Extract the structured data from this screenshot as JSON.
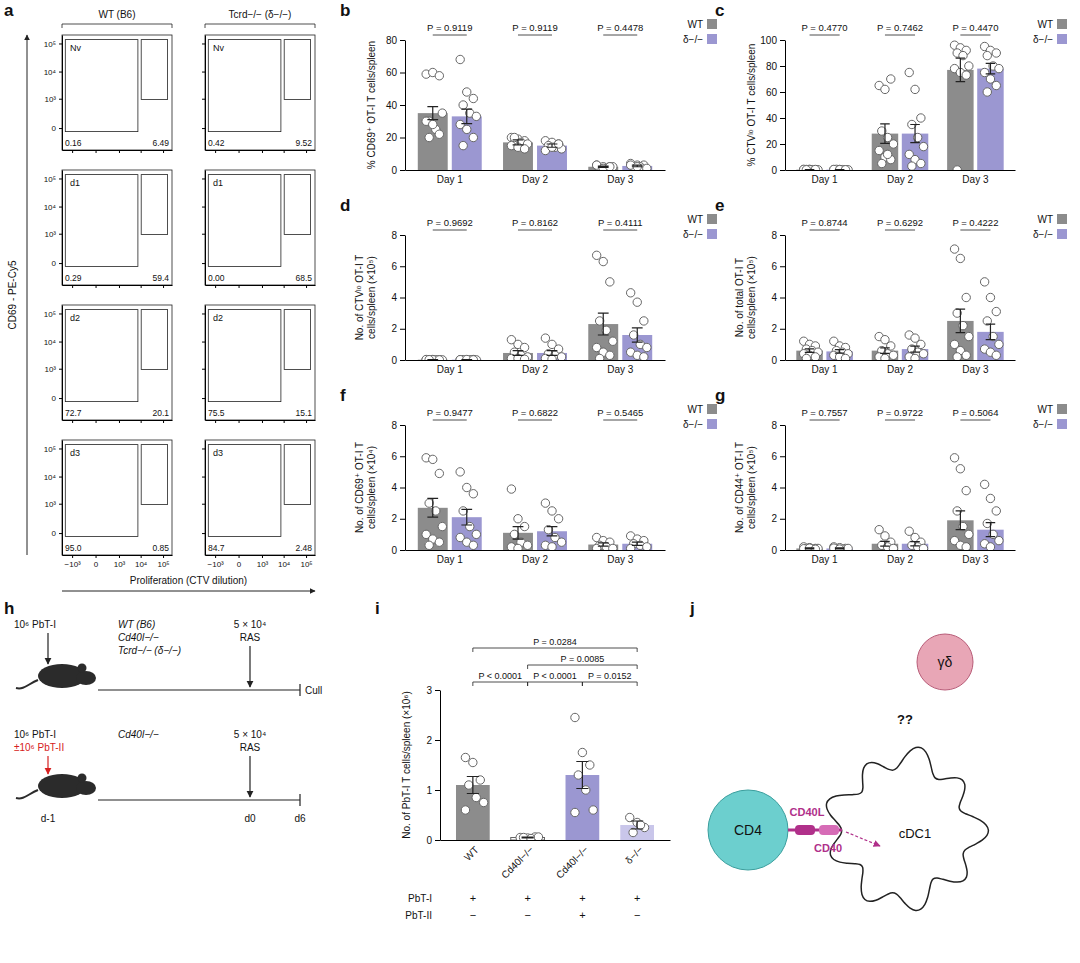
{
  "chart_data": [
    {
      "panel": "b",
      "type": "bar",
      "y_label": "% CD69⁺ OT-I T cells/spleen",
      "categories": [
        "Day 1",
        "Day 2",
        "Day 3"
      ],
      "ylim": [
        0,
        80
      ],
      "yticks": [
        0,
        20,
        40,
        60,
        80
      ],
      "p_values": [
        "P = 0.9119",
        "P = 0.9119",
        "P = 0.4478"
      ],
      "legend": "right",
      "series": [
        {
          "name": "WT",
          "color": "#8c8c8c",
          "values": [
            35,
            17,
            2
          ],
          "errors": [
            4,
            1.5,
            0.4
          ],
          "points": [
            [
              59,
              60,
              58,
              30,
              25,
              35,
              30,
              28,
              22,
              20
            ],
            [
              20,
              19,
              18,
              17,
              17,
              16,
              15,
              14,
              13,
              20
            ],
            [
              3,
              2,
              2,
              1,
              1,
              2,
              3,
              1,
              2
            ]
          ]
        },
        {
          "name": "δ−/−",
          "color": "#9b97d1",
          "values": [
            33,
            15,
            2.5
          ],
          "errors": [
            4.5,
            1,
            0.5
          ],
          "points": [
            [
              68,
              48,
              44,
              40,
              35,
              33,
              28,
              25,
              20,
              15
            ],
            [
              18,
              17,
              16,
              15,
              14,
              13,
              12,
              14,
              16
            ],
            [
              4,
              3,
              3,
              2,
              2,
              1,
              3,
              2
            ]
          ]
        }
      ]
    },
    {
      "panel": "c",
      "type": "bar",
      "y_label": "% CTVˡᵒ OT-I T cells/spleen",
      "categories": [
        "Day 1",
        "Day 2",
        "Day 3"
      ],
      "ylim": [
        0,
        100
      ],
      "yticks": [
        0,
        20,
        40,
        60,
        80,
        100
      ],
      "p_values": [
        "P = 0.4770",
        "P = 0.7462",
        "P = 0.4470"
      ],
      "legend": "right",
      "series": [
        {
          "name": "WT",
          "color": "#8c8c8c",
          "values": [
            0.3,
            28,
            77
          ],
          "errors": [
            0.1,
            7.5,
            9
          ],
          "points": [
            [
              0.3,
              0.5,
              0.2,
              0.4,
              0.3,
              0.2,
              0.5,
              0.3,
              0.4,
              0.2
            ],
            [
              65,
              62,
              70,
              30,
              25,
              20,
              15,
              10,
              8,
              5,
              12
            ],
            [
              96,
              94,
              92,
              90,
              88,
              80,
              78,
              75,
              73,
              0
            ]
          ]
        },
        {
          "name": "δ−/−",
          "color": "#9b97d1",
          "values": [
            0.3,
            28,
            78
          ],
          "errors": [
            0.1,
            7,
            4
          ],
          "points": [
            [
              0.3,
              0.4,
              0.2,
              0.5,
              0.3,
              0.2,
              0.4,
              0.3,
              0.2
            ],
            [
              75,
              62,
              40,
              35,
              25,
              18,
              12,
              8,
              5,
              3
            ],
            [
              95,
              92,
              90,
              88,
              80,
              78,
              75,
              70,
              65,
              60
            ]
          ]
        }
      ]
    },
    {
      "panel": "d",
      "type": "bar",
      "y_label": "No. of CTVˡᵒ OT-I T cells/spleen (×10⁵)",
      "categories": [
        "Day 1",
        "Day 2",
        "Day 3"
      ],
      "ylim": [
        0,
        8
      ],
      "yticks": [
        0,
        2,
        4,
        6,
        8
      ],
      "p_values": [
        "P = 0.9692",
        "P = 0.8162",
        "P = 0.4111"
      ],
      "legend": "right",
      "series": [
        {
          "name": "WT",
          "color": "#8c8c8c",
          "values": [
            0.02,
            0.45,
            2.3
          ],
          "errors": [
            0.01,
            0.15,
            0.7
          ],
          "points": [
            [
              0.02,
              0.03,
              0.01,
              0.02,
              0.02,
              0.01,
              0.03,
              0.02,
              0.01,
              0.02
            ],
            [
              1.3,
              1.0,
              0.8,
              0.5,
              0.3,
              0.2,
              0.1,
              0.1,
              0.05
            ],
            [
              6.7,
              6.3,
              5.0,
              2.5,
              1.9,
              1.2,
              0.8,
              0.5,
              0.3,
              0.1
            ]
          ]
        },
        {
          "name": "δ−/−",
          "color": "#9b97d1",
          "values": [
            0.02,
            0.45,
            1.6
          ],
          "errors": [
            0.01,
            0.15,
            0.45
          ],
          "points": [
            [
              0.02,
              0.01,
              0.03,
              0.02,
              0.02,
              0.01,
              0.02,
              0.03,
              0.01
            ],
            [
              1.4,
              1.0,
              0.7,
              0.4,
              0.3,
              0.2,
              0.1,
              0.05
            ],
            [
              4.3,
              3.7,
              2.5,
              1.6,
              1.0,
              0.8,
              0.5,
              0.3,
              0.2
            ]
          ]
        }
      ]
    },
    {
      "panel": "e",
      "type": "bar",
      "y_label": "No. of total OT-I T cells/spleen (×10⁵)",
      "categories": [
        "Day 1",
        "Day 2",
        "Day 3"
      ],
      "ylim": [
        0,
        8
      ],
      "yticks": [
        0,
        2,
        4,
        6,
        8
      ],
      "p_values": [
        "P = 0.8744",
        "P = 0.6292",
        "P = 0.4222"
      ],
      "legend": "right",
      "series": [
        {
          "name": "WT",
          "color": "#8c8c8c",
          "values": [
            0.6,
            0.6,
            2.5
          ],
          "errors": [
            0.11,
            0.17,
            0.75
          ],
          "points": [
            [
              1.2,
              1.0,
              0.9,
              0.7,
              0.6,
              0.5,
              0.4,
              0.3,
              0.2,
              0.1
            ],
            [
              1.5,
              1.3,
              0.9,
              0.6,
              0.4,
              0.3,
              0.2,
              0.1
            ],
            [
              7.1,
              6.5,
              4.0,
              3.0,
              2.2,
              1.5,
              1.0,
              0.6,
              0.3,
              0.2
            ]
          ]
        },
        {
          "name": "δ−/−",
          "color": "#9b97d1",
          "values": [
            0.55,
            0.7,
            1.8
          ],
          "errors": [
            0.11,
            0.19,
            0.5
          ],
          "points": [
            [
              1.2,
              0.9,
              0.8,
              0.6,
              0.5,
              0.4,
              0.3,
              0.2,
              0.1
            ],
            [
              1.6,
              1.4,
              1.0,
              0.7,
              0.5,
              0.4,
              0.2,
              0.1
            ],
            [
              5.0,
              4.0,
              3.1,
              2.5,
              1.5,
              1.0,
              0.7,
              0.5,
              0.3
            ]
          ]
        }
      ]
    },
    {
      "panel": "f",
      "type": "bar",
      "y_label": "No. of CD69⁺ OT-I T cells/spleen (×10⁴)",
      "categories": [
        "Day 1",
        "Day 2",
        "Day 3"
      ],
      "ylim": [
        0,
        8
      ],
      "yticks": [
        0,
        2,
        4,
        6,
        8
      ],
      "p_values": [
        "P = 0.9477",
        "P = 0.6822",
        "P = 0.5465"
      ],
      "legend": "right",
      "series": [
        {
          "name": "WT",
          "color": "#8c8c8c",
          "values": [
            2.7,
            1.1,
            0.35
          ],
          "errors": [
            0.6,
            0.4,
            0.1
          ],
          "points": [
            [
              5.9,
              5.8,
              4.9,
              3.0,
              2.5,
              1.5,
              1.0,
              0.7,
              0.5,
              0.3
            ],
            [
              3.9,
              2.0,
              1.5,
              1.0,
              0.5,
              0.3,
              0.2,
              0.1
            ],
            [
              0.8,
              0.6,
              0.5,
              0.3,
              0.2,
              0.1,
              0.1
            ]
          ]
        },
        {
          "name": "δ−/−",
          "color": "#9b97d1",
          "values": [
            2.1,
            1.2,
            0.4
          ],
          "errors": [
            0.5,
            0.3,
            0.1
          ],
          "points": [
            [
              5.0,
              4.0,
              3.6,
              2.5,
              1.5,
              1.0,
              0.8,
              0.5,
              0.3
            ],
            [
              3.0,
              2.5,
              2.0,
              1.3,
              0.8,
              0.5,
              0.3,
              0.2
            ],
            [
              0.9,
              0.7,
              0.6,
              0.4,
              0.3,
              0.2,
              0.1
            ]
          ]
        }
      ]
    },
    {
      "panel": "g",
      "type": "bar",
      "y_label": "No. of CD44⁺ OT-I T cells/spleen (×10⁵)",
      "categories": [
        "Day 1",
        "Day 2",
        "Day 3"
      ],
      "ylim": [
        0,
        8
      ],
      "yticks": [
        0,
        2,
        4,
        6,
        8
      ],
      "p_values": [
        "P = 0.7557",
        "P = 0.9722",
        "P = 0.5064"
      ],
      "legend": "right",
      "series": [
        {
          "name": "WT",
          "color": "#8c8c8c",
          "values": [
            0.1,
            0.4,
            1.9
          ],
          "errors": [
            0.03,
            0.15,
            0.6
          ],
          "points": [
            [
              0.2,
              0.15,
              0.1,
              0.1,
              0.05,
              0.1,
              0.08,
              0.12,
              0.05
            ],
            [
              1.3,
              0.9,
              0.5,
              0.3,
              0.2,
              0.1
            ],
            [
              5.9,
              5.2,
              3.8,
              2.5,
              1.5,
              1.0,
              0.6,
              0.3,
              0.2
            ]
          ]
        },
        {
          "name": "δ−/−",
          "color": "#9b97d1",
          "values": [
            0.1,
            0.4,
            1.3
          ],
          "errors": [
            0.03,
            0.14,
            0.45
          ],
          "points": [
            [
              0.2,
              0.15,
              0.1,
              0.08,
              0.05,
              0.1,
              0.12,
              0.06
            ],
            [
              1.2,
              0.8,
              0.5,
              0.3,
              0.2,
              0.1
            ],
            [
              4.2,
              3.3,
              2.5,
              1.7,
              1.0,
              0.6,
              0.4,
              0.2
            ]
          ]
        }
      ]
    },
    {
      "panel": "i",
      "type": "bar",
      "y_label": "No. of PbT-I T cells/spleen (×10⁶)",
      "categories": [
        "WT",
        "Cd40l−/−",
        "Cd40l−/−",
        "δ−/−"
      ],
      "ylim": [
        0,
        3
      ],
      "yticks": [
        0,
        1,
        2,
        3
      ],
      "values": [
        1.1,
        0.05,
        1.3,
        0.3
      ],
      "errors": [
        0.17,
        0.01,
        0.27,
        0.08
      ],
      "colors": [
        "#8c8c8c",
        "#ffffff",
        "#9b97d1",
        "#c9c6ea"
      ],
      "points": [
        [
          1.65,
          1.55,
          1.2,
          1.1,
          0.85,
          0.75,
          0.6
        ],
        [
          0.05,
          0.04,
          0.06,
          0.05,
          0.03,
          0.06
        ],
        [
          2.45,
          1.75,
          1.5,
          1.3,
          1.0,
          0.6,
          0.55
        ],
        [
          0.45,
          0.35,
          0.25,
          0.15,
          0.3
        ]
      ],
      "comparisons": [
        {
          "groups": [
            0,
            3
          ],
          "label": "P = 0.0284"
        },
        {
          "groups": [
            1,
            3
          ],
          "label": "P = 0.0085"
        },
        {
          "groups": [
            1,
            2
          ],
          "label": "P < 0.0001"
        },
        {
          "groups": [
            2,
            3
          ],
          "label": "P = 0.0152"
        },
        {
          "groups": [
            0,
            1
          ],
          "label": "P < 0.0001"
        }
      ],
      "table": {
        "rows": [
          {
            "label": "PbT-I",
            "cells": [
              "+",
              "+",
              "+",
              "+"
            ]
          },
          {
            "label": "PbT-II",
            "cells": [
              "−",
              "−",
              "+",
              "−"
            ]
          }
        ]
      }
    }
  ],
  "flow_panel": {
    "panel": "a",
    "columns": [
      "WT (B6)",
      "Tcrd−/− (δ−/−)"
    ],
    "y_label": "CD69 - PE-Cy5",
    "x_label": "Proliferation (CTV dilution)",
    "xlim": [
      -3000,
      250000
    ],
    "xticks": [
      {
        "value": -1000,
        "label": "−10³"
      },
      0,
      {
        "value": 1000,
        "label": "10³"
      },
      {
        "value": 10000,
        "label": "10⁴"
      },
      {
        "value": 100000,
        "label": "10⁵"
      }
    ],
    "ylim": [
      -500,
      200000
    ],
    "yticks": [
      0,
      {
        "value": 1000,
        "label": "10³"
      },
      {
        "value": 10000,
        "label": "10⁴"
      },
      {
        "value": 100000,
        "label": "10⁵"
      }
    ],
    "rows": [
      {
        "label": "Nv",
        "values": [
          [
            "0.16",
            "6.49"
          ],
          [
            "0.42",
            "9.52"
          ]
        ]
      },
      {
        "label": "d1",
        "values": [
          [
            "0.29",
            "59.4"
          ],
          [
            "0.00",
            "68.5"
          ]
        ]
      },
      {
        "label": "d2",
        "values": [
          [
            "72.7",
            "20.1"
          ],
          [
            "75.5",
            "15.1"
          ]
        ]
      },
      {
        "label": "d3",
        "values": [
          [
            "95.0",
            "0.85"
          ],
          [
            "84.7",
            "2.48"
          ]
        ]
      }
    ]
  },
  "diagram_h": {
    "panel": "h",
    "rows": [
      {
        "cells": [
          "10⁶ PbT-I"
        ],
        "strains": [
          "WT (B6)",
          "Cd40l−/−",
          "Tcrd−/− (δ−/−)"
        ],
        "tumor": [
          "5 × 10⁴",
          "RAS"
        ],
        "end": "Cull"
      },
      {
        "cells": [
          "10⁶ PbT-I",
          "±10⁶ PbT-II"
        ],
        "strains": [
          "Cd40l−/−"
        ],
        "tumor": [
          "5 × 10⁴",
          "RAS"
        ]
      }
    ],
    "timeline": [
      "d-1",
      "d0",
      "d6"
    ]
  },
  "diagram_j": {
    "panel": "j",
    "cd4": "CD4",
    "gd": "γδ",
    "cdc1": "cDC1",
    "ligand": "CD40L",
    "receptor": "CD40",
    "unknown": "??"
  }
}
